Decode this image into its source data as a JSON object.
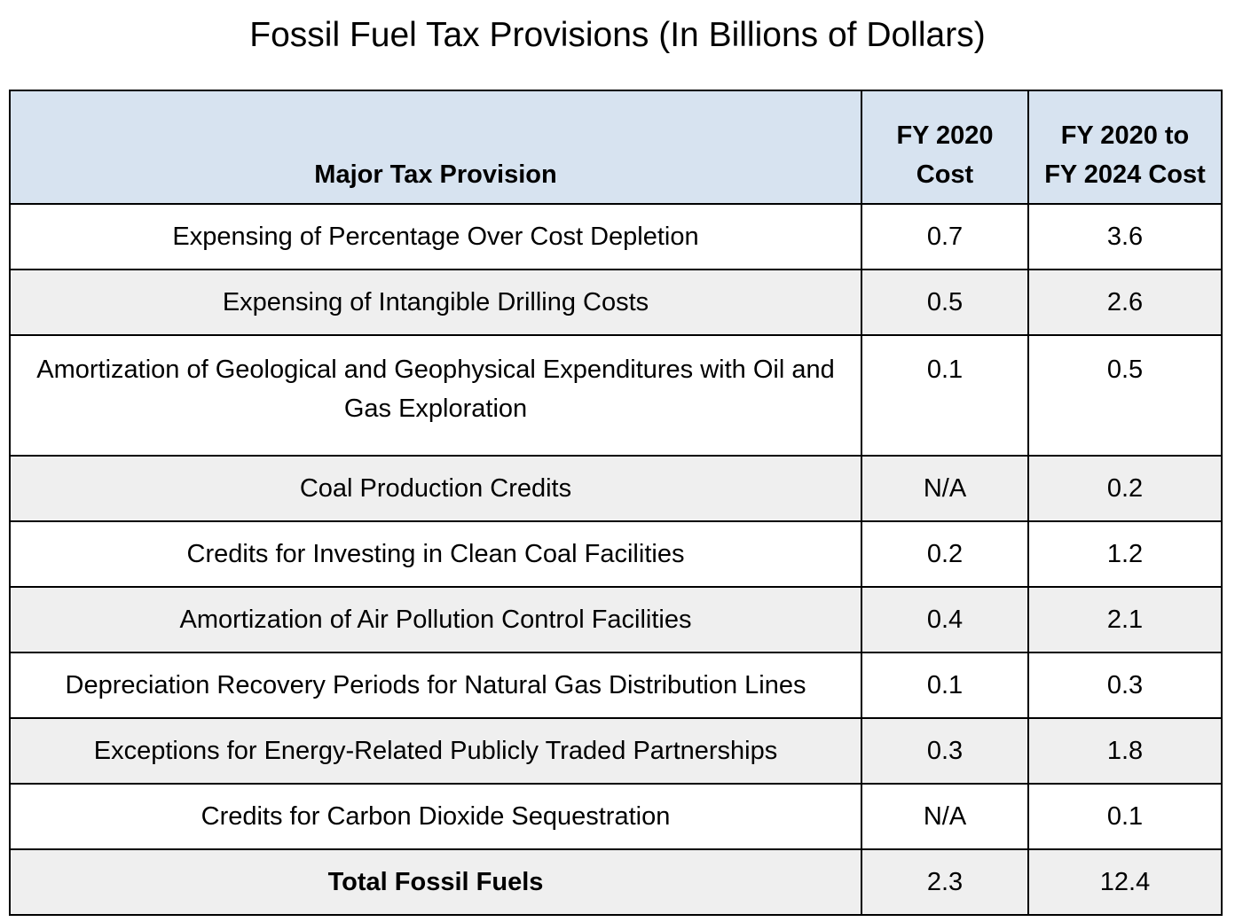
{
  "chart_data": {
    "type": "table",
    "title": "Fossil Fuel Tax Provisions (In Billions of Dollars)",
    "columns": [
      "Major Tax Provision",
      "FY 2020 Cost",
      "FY 2020 to FY 2024 Cost"
    ],
    "header": {
      "provision": "Major Tax Provision",
      "fy2020_line1": "FY 2020",
      "fy2020_line2": "Cost",
      "fy2020_2024_line1": "FY 2020 to",
      "fy2020_2024_line2": "FY 2024 Cost"
    },
    "rows": [
      {
        "provision": "Expensing of Percentage Over Cost Depletion",
        "fy2020": "0.7",
        "fy2020_2024": "3.6"
      },
      {
        "provision": "Expensing of Intangible Drilling Costs",
        "fy2020": "0.5",
        "fy2020_2024": "2.6"
      },
      {
        "provision": "Amortization of Geological and Geophysical  Expenditures with Oil and Gas Exploration",
        "fy2020": "0.1",
        "fy2020_2024": "0.5"
      },
      {
        "provision": "Coal Production Credits",
        "fy2020": "N/A",
        "fy2020_2024": "0.2"
      },
      {
        "provision": "Credits for Investing in Clean Coal Facilities",
        "fy2020": "0.2",
        "fy2020_2024": "1.2"
      },
      {
        "provision": "Amortization of Air Pollution Control Facilities",
        "fy2020": "0.4",
        "fy2020_2024": "2.1"
      },
      {
        "provision": "Depreciation Recovery Periods for Natural Gas Distribution Lines",
        "fy2020": "0.1",
        "fy2020_2024": "0.3"
      },
      {
        "provision": "Exceptions for Energy-Related Publicly Traded Partnerships",
        "fy2020": "0.3",
        "fy2020_2024": "1.8"
      },
      {
        "provision": "Credits for Carbon Dioxide Sequestration",
        "fy2020": "N/A",
        "fy2020_2024": "0.1"
      }
    ],
    "total": {
      "provision": "Total Fossil Fuels",
      "fy2020": "2.3",
      "fy2020_2024": "12.4"
    },
    "colors": {
      "header_background": "#d7e3f0",
      "shaded_row": "#efefef",
      "border": "#000000"
    }
  }
}
